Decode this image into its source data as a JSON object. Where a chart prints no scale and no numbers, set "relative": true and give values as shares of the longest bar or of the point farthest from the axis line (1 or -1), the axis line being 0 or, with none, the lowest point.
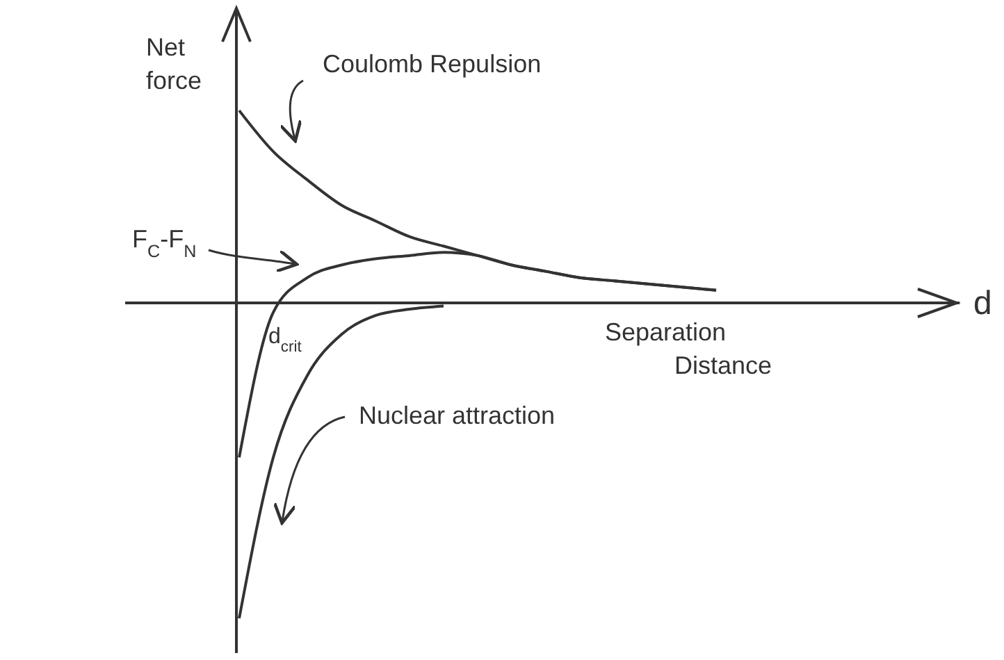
{
  "chart_data": {
    "type": "line",
    "relative": true,
    "ylabel": "Net force",
    "xlabel": "Separation Distance",
    "categories": [
      null,
      null,
      null,
      null,
      null,
      null,
      null,
      null,
      null,
      null,
      null,
      null,
      null,
      null,
      null
    ],
    "series": [
      {
        "name": "Coulomb Repulsion",
        "color": "#333333",
        "values": [
          0.61,
          0.48,
          0.39,
          0.31,
          0.26,
          0.21,
          0.18,
          0.15,
          0.12,
          0.1,
          0.08,
          0.07,
          0.06,
          0.05,
          0.04
        ]
      },
      {
        "name": "F$_{C}$-F$_{N}$",
        "color": "#333333",
        "values": [
          -0.49,
          -0.03,
          0.08,
          0.12,
          0.14,
          0.15,
          0.16,
          0.15,
          0.12,
          0.1,
          0.08,
          0.07,
          0.06,
          0.05,
          0.04
        ]
      },
      {
        "name": "Nuclear attraction",
        "color": "#333333",
        "values": [
          -1,
          -0.49,
          -0.23,
          -0.1,
          -0.04,
          -0.02,
          -0.01,
          null,
          null,
          null,
          null,
          null,
          null,
          null,
          null
        ]
      }
    ],
    "annotations": [
      "d",
      "d$_{crit}$"
    ],
    "marker": "none",
    "line_style": "solid"
  }
}
